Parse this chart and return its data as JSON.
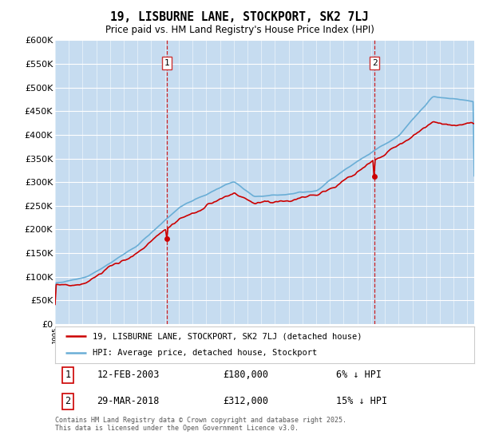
{
  "title": "19, LISBURNE LANE, STOCKPORT, SK2 7LJ",
  "subtitle": "Price paid vs. HM Land Registry's House Price Index (HPI)",
  "ylim": [
    0,
    600000
  ],
  "yticks": [
    0,
    50000,
    100000,
    150000,
    200000,
    250000,
    300000,
    350000,
    400000,
    450000,
    500000,
    550000,
    600000
  ],
  "hpi_color": "#6aaed6",
  "hpi_fill_color": "#c6dcf0",
  "price_color": "#cc0000",
  "vline_color": "#cc0000",
  "annotation1_year": 2003.12,
  "annotation1_price": 180000,
  "annotation1_date": "12-FEB-2003",
  "annotation1_note": "6% ↓ HPI",
  "annotation2_year": 2018.24,
  "annotation2_price": 312000,
  "annotation2_date": "29-MAR-2018",
  "annotation2_note": "15% ↓ HPI",
  "legend_label1": "19, LISBURNE LANE, STOCKPORT, SK2 7LJ (detached house)",
  "legend_label2": "HPI: Average price, detached house, Stockport",
  "footer": "Contains HM Land Registry data © Crown copyright and database right 2025.\nThis data is licensed under the Open Government Licence v3.0.",
  "xmin": 1995,
  "xmax": 2025.5
}
